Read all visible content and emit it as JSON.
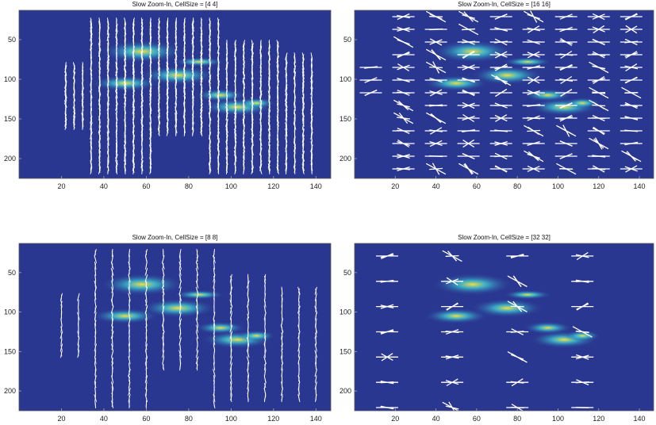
{
  "chart_data": [
    {
      "type": "heatmap",
      "title": "Slow Zoom-In, CellSize = [4 4]",
      "xlabel": "",
      "ylabel": "",
      "xlim": [
        0,
        147
      ],
      "ylim": [
        225,
        13
      ],
      "xticks": [
        20,
        40,
        60,
        80,
        100,
        120,
        140
      ],
      "yticks": [
        50,
        100,
        150,
        200
      ],
      "cell_size": 4,
      "background_color": "#2a3791",
      "glyph_color": "#ffffff",
      "overlay": "HOG orientation glyphs"
    },
    {
      "type": "heatmap",
      "title": "Slow Zoom-In, CellSize = [16 16]",
      "xlabel": "",
      "ylabel": "",
      "xlim": [
        0,
        147
      ],
      "ylim": [
        225,
        13
      ],
      "xticks": [
        20,
        40,
        60,
        80,
        100,
        120,
        140
      ],
      "yticks": [
        50,
        100,
        150,
        200
      ],
      "cell_size": 16,
      "background_color": "#2a3791",
      "glyph_color": "#ffffff",
      "overlay": "HOG orientation glyphs"
    },
    {
      "type": "heatmap",
      "title": "Slow Zoom-In, CellSize = [8 8]",
      "xlabel": "",
      "ylabel": "",
      "xlim": [
        0,
        147
      ],
      "ylim": [
        225,
        13
      ],
      "xticks": [
        20,
        40,
        60,
        80,
        100,
        120,
        140
      ],
      "yticks": [
        50,
        100,
        150,
        200
      ],
      "cell_size": 8,
      "background_color": "#2a3791",
      "glyph_color": "#ffffff",
      "overlay": "HOG orientation glyphs"
    },
    {
      "type": "heatmap",
      "title": "Slow Zoom-In, CellSize = [32 32]",
      "xlabel": "",
      "ylabel": "",
      "xlim": [
        0,
        147
      ],
      "ylim": [
        225,
        13
      ],
      "xticks": [
        20,
        40,
        60,
        80,
        100,
        120,
        140
      ],
      "yticks": [
        50,
        100,
        150,
        200
      ],
      "cell_size": 32,
      "background_color": "#2a3791",
      "glyph_color": "#ffffff",
      "overlay": "HOG orientation glyphs"
    }
  ]
}
